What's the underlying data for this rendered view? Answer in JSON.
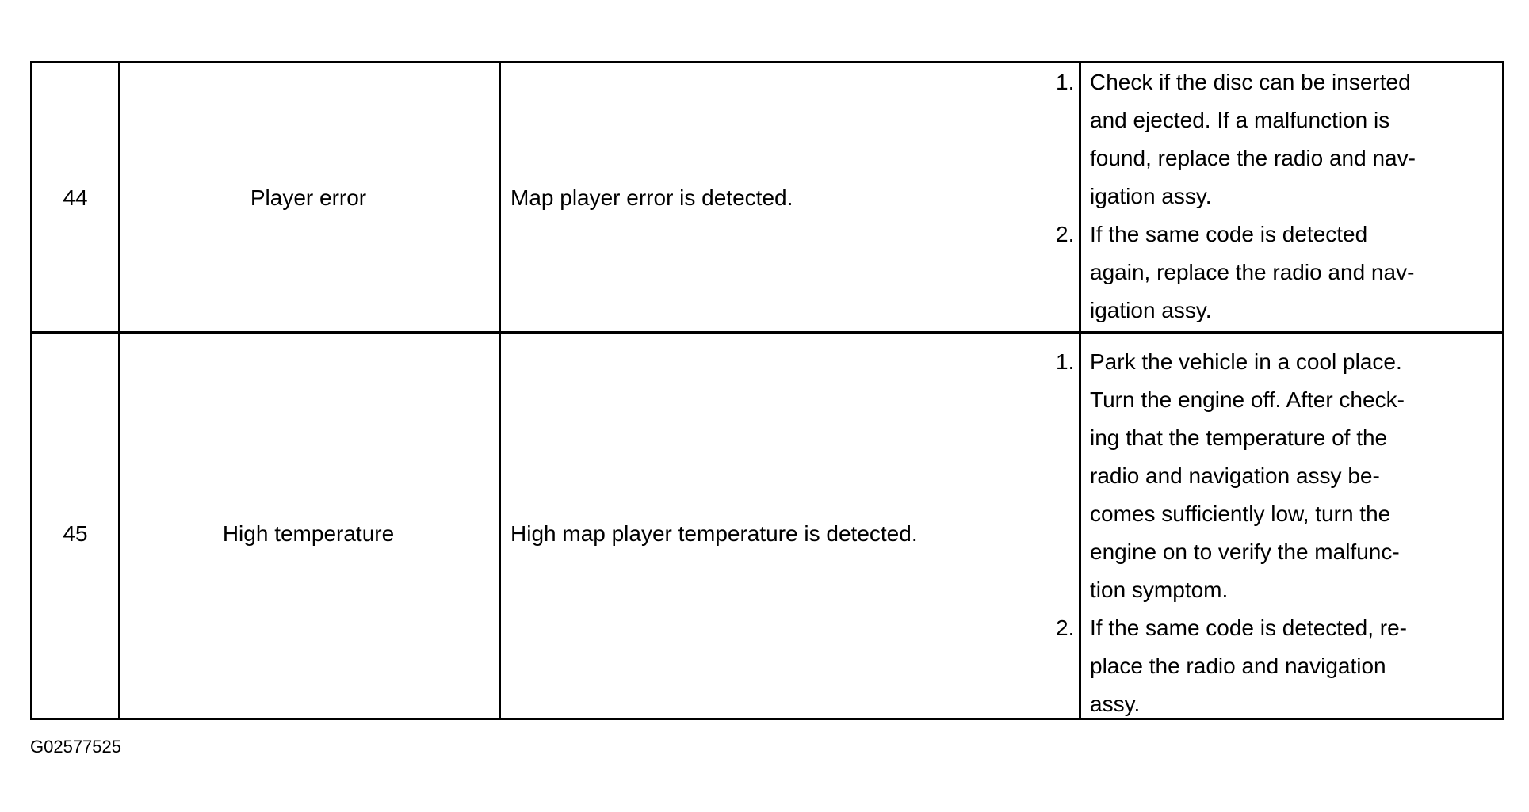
{
  "rows": [
    {
      "code": "44",
      "title": "Player error",
      "detection": "Map player error is detected.",
      "steps": [
        {
          "num": "1.",
          "lines": [
            "Check if the disc can be inserted",
            "and ejected. If a malfunction is",
            "found, replace the radio and nav-",
            "igation assy."
          ]
        },
        {
          "num": "2.",
          "lines": [
            "If the same code is detected",
            "again, replace the radio and nav-",
            "igation assy."
          ]
        }
      ]
    },
    {
      "code": "45",
      "title": "High temperature",
      "detection": "High map player temperature is detected.",
      "steps": [
        {
          "num": "1.",
          "lines": [
            "Park the vehicle in a cool place.",
            "Turn the engine off. After check-",
            "ing that the temperature of the",
            "radio and navigation assy be-",
            "comes sufficiently low, turn the",
            "engine on to verify the malfunc-",
            "tion symptom."
          ]
        },
        {
          "num": "2.",
          "lines": [
            "If the same code is detected, re-",
            "place the radio and navigation",
            "assy."
          ]
        }
      ]
    }
  ],
  "figure_id": "G02577525"
}
